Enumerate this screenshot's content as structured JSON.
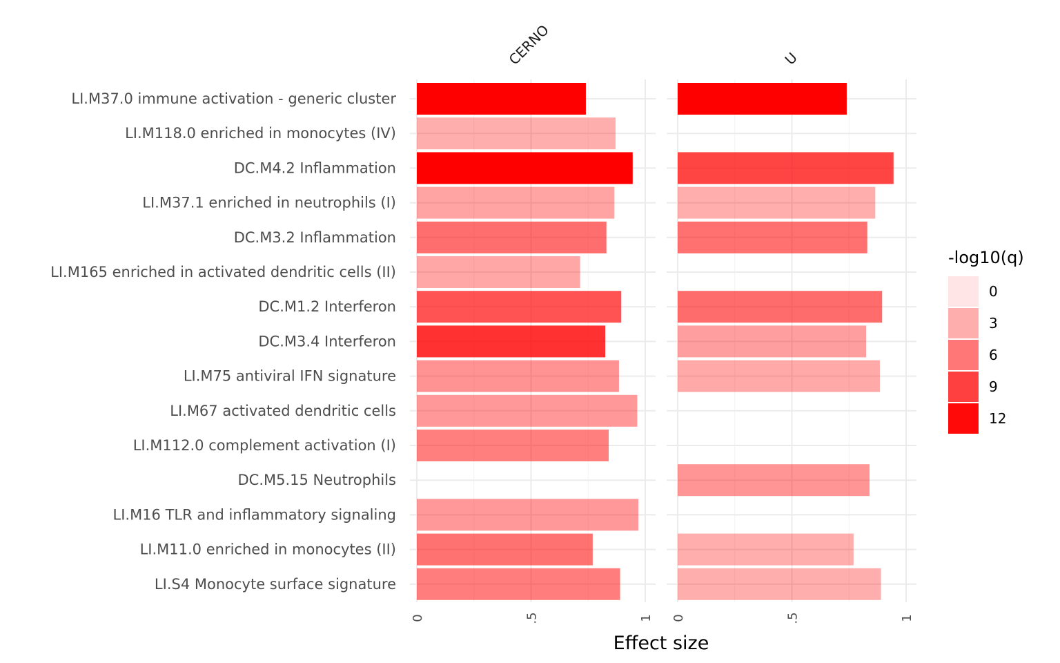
{
  "chart_data": {
    "type": "bar",
    "orientation": "horizontal",
    "xlabel": "Effect size",
    "xlim": [
      0,
      1
    ],
    "x_ticks": [
      0,
      0.5,
      1
    ],
    "x_tick_labels": [
      "0",
      ".5",
      "1"
    ],
    "grid": true,
    "categories": [
      "LI.M37.0 immune activation - generic cluster",
      "LI.M118.0 enriched in monocytes (IV)",
      "DC.M4.2 Inflammation",
      "LI.M37.1 enriched in neutrophils (I)",
      "DC.M3.2 Inflammation",
      "LI.M165 enriched in activated dendritic cells (II)",
      "DC.M1.2 Interferon",
      "DC.M3.4 Interferon",
      "LI.M75 antiviral IFN signature",
      "LI.M67 activated dendritic cells",
      "LI.M112.0 complement activation (I)",
      "DC.M5.15 Neutrophils",
      "LI.M16 TLR and inflammatory signaling",
      "LI.M11.0 enriched in monocytes (II)",
      "LI.S4 Monocyte surface signature"
    ],
    "facets": [
      {
        "name": "CERNO",
        "values": [
          0.74,
          0.87,
          0.945,
          0.865,
          0.83,
          0.715,
          0.895,
          0.825,
          0.885,
          0.965,
          0.84,
          null,
          0.97,
          0.77,
          0.89
        ],
        "neg_log10_q": [
          12.5,
          3.0,
          12.5,
          3.6,
          6.5,
          3.4,
          8.0,
          9.8,
          4.5,
          4.2,
          5.6,
          null,
          4.2,
          6.3,
          5.7
        ]
      },
      {
        "name": "U",
        "values": [
          0.74,
          null,
          0.945,
          0.865,
          0.83,
          null,
          0.895,
          0.825,
          0.885,
          null,
          null,
          0.84,
          null,
          0.77,
          0.89
        ],
        "neg_log10_q": [
          12.5,
          null,
          8.8,
          3.1,
          6.4,
          null,
          6.6,
          3.9,
          3.3,
          null,
          null,
          4.4,
          null,
          3.1,
          3.0
        ]
      }
    ],
    "legend": {
      "title": "-log10(q)",
      "placement": "right",
      "breaks": [
        0,
        3,
        6,
        9,
        12
      ],
      "labels": [
        "0",
        "3",
        "6",
        "9",
        "12"
      ],
      "color_low": "#ffffff",
      "color_high": "#ff0000",
      "max": 12.5
    }
  }
}
